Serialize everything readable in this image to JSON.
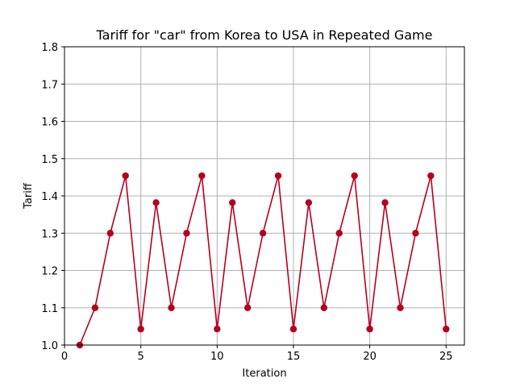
{
  "chart_data": {
    "type": "line",
    "title": "Tariff for \"car\" from Korea to USA in Repeated Game",
    "xlabel": "Iteration",
    "ylabel": "Tariff",
    "xlim": [
      0,
      26.2
    ],
    "ylim": [
      1.0,
      1.8
    ],
    "xticks": [
      0,
      5,
      10,
      15,
      20,
      25
    ],
    "yticks": [
      1.0,
      1.1,
      1.2,
      1.3,
      1.4,
      1.5,
      1.6,
      1.7,
      1.8
    ],
    "grid": true,
    "series": [
      {
        "color": "#b5001e",
        "marker": "circle",
        "x": [
          1,
          2,
          3,
          4,
          5,
          6,
          7,
          8,
          9,
          10,
          11,
          12,
          13,
          14,
          15,
          16,
          17,
          18,
          19,
          20,
          21,
          22,
          23,
          24,
          25
        ],
        "y": [
          1.0,
          1.1,
          1.3,
          1.454,
          1.043,
          1.382,
          1.1,
          1.3,
          1.454,
          1.043,
          1.382,
          1.1,
          1.3,
          1.454,
          1.043,
          1.382,
          1.1,
          1.3,
          1.454,
          1.043,
          1.382,
          1.1,
          1.3,
          1.454,
          1.043
        ]
      }
    ]
  }
}
